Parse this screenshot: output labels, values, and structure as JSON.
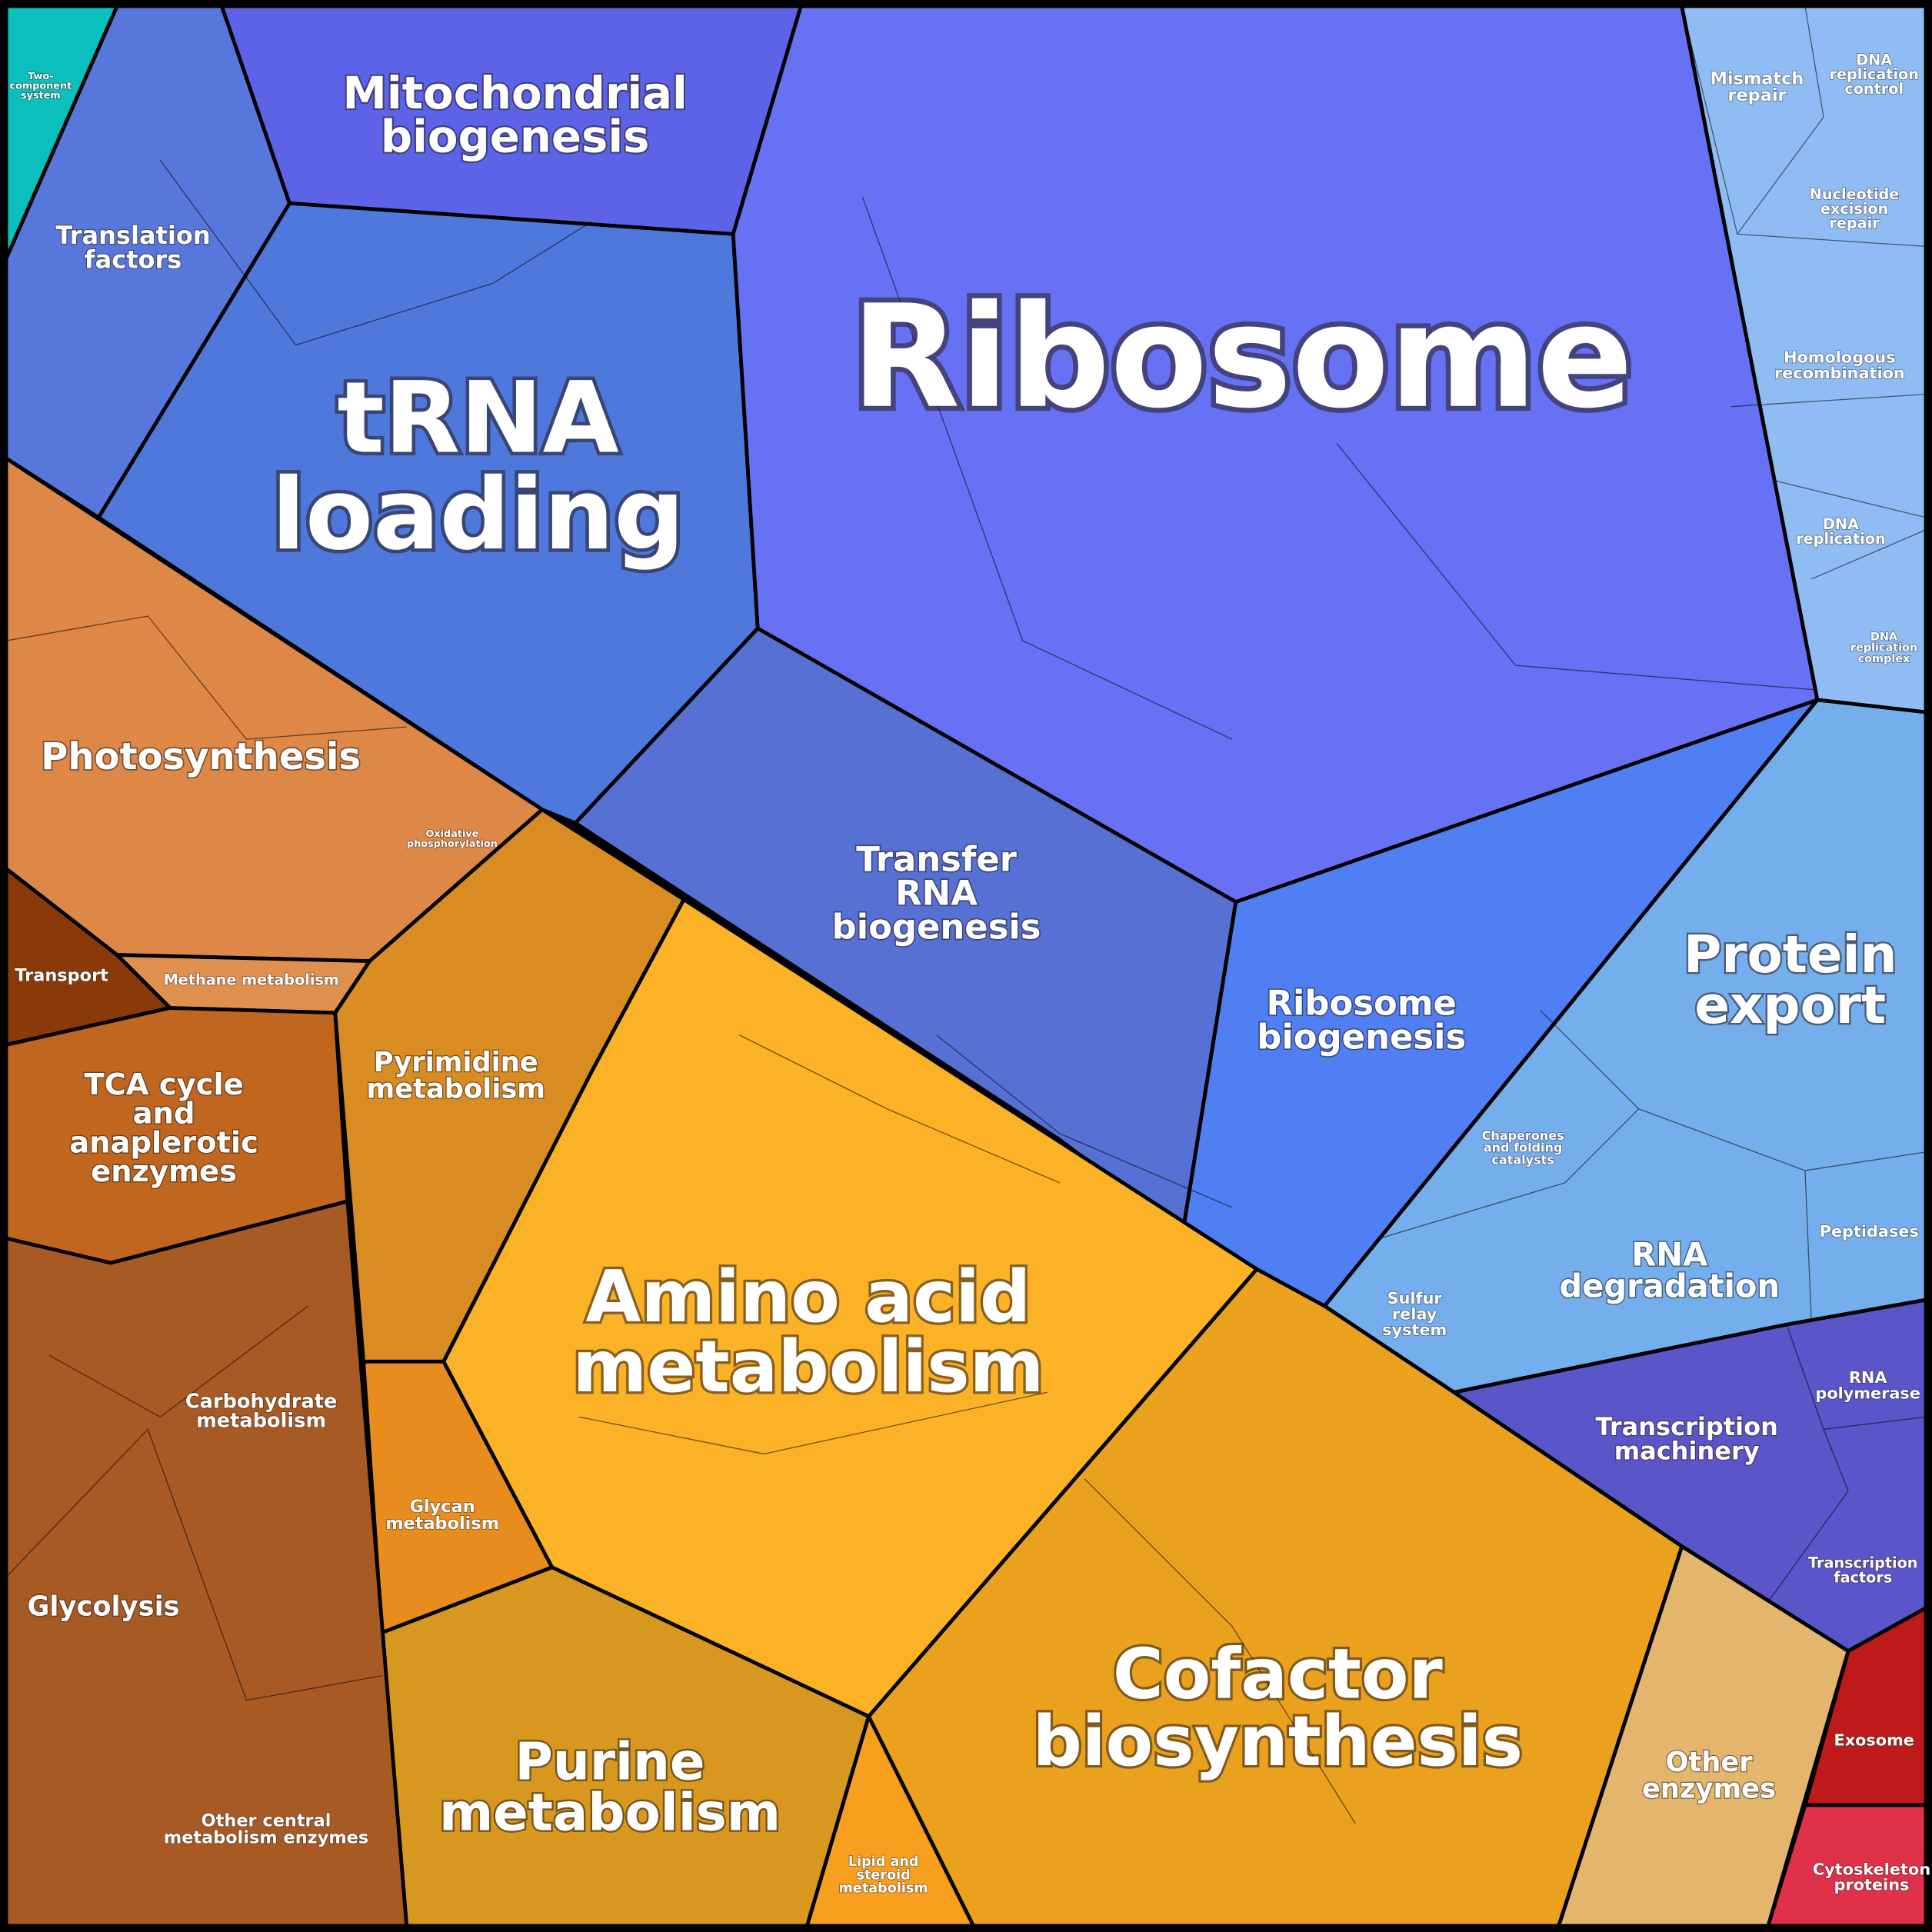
{
  "cells": [
    {
      "label": [
        "Two-",
        "component",
        "system"
      ]
    },
    {
      "label": [
        "Translation",
        "factors"
      ]
    },
    {
      "label": [
        "Mitochondrial",
        "biogenesis"
      ]
    },
    {
      "label": [
        "tRNA",
        "loading"
      ]
    },
    {
      "label": [
        "Ribosome"
      ]
    },
    {
      "label": [
        "Transfer",
        "RNA",
        "biogenesis"
      ]
    },
    {
      "label": [
        "Ribosome",
        "biogenesis"
      ]
    },
    {
      "label": [
        "Protein",
        "export"
      ]
    },
    {
      "label": [
        "Mismatch",
        "repair"
      ]
    },
    {
      "label": [
        "DNA",
        "replication",
        "control"
      ]
    },
    {
      "label": [
        "Nucleotide",
        "excision",
        "repair"
      ]
    },
    {
      "label": [
        "Homologous",
        "recombination"
      ]
    },
    {
      "label": [
        "DNA",
        "replication"
      ]
    },
    {
      "label": [
        "DNA",
        "replication",
        "complex"
      ]
    },
    {
      "label": [
        "Chaperones",
        "and folding",
        "catalysts"
      ]
    },
    {
      "label": [
        "Sulfur",
        "relay",
        "system"
      ]
    },
    {
      "label": [
        "RNA",
        "degradation"
      ]
    },
    {
      "label": [
        "Peptidases"
      ]
    },
    {
      "label": [
        "Transcription",
        "machinery"
      ]
    },
    {
      "label": [
        "RNA",
        "polymerase"
      ]
    },
    {
      "label": [
        "Transcription",
        "factors"
      ]
    },
    {
      "label": [
        "Exosome"
      ]
    },
    {
      "label": [
        "Cytoskeleton",
        "proteins"
      ]
    },
    {
      "label": [
        "Other",
        "enzymes"
      ]
    },
    {
      "label": [
        "Cofactor",
        "biosynthesis"
      ]
    },
    {
      "label": [
        "Lipid and",
        "steroid",
        "metabolism"
      ]
    },
    {
      "label": [
        "Purine",
        "metabolism"
      ]
    },
    {
      "label": [
        "Amino acid",
        "metabolism"
      ]
    },
    {
      "label": [
        "Glycan",
        "metabolism"
      ]
    },
    {
      "label": [
        "Pyrimidine",
        "metabolism"
      ]
    },
    {
      "label": [
        "Photosynthesis"
      ]
    },
    {
      "label": [
        "Oxidative",
        "phosphorylation"
      ]
    },
    {
      "label": [
        "Methane metabolism"
      ]
    },
    {
      "label": [
        "Transport"
      ]
    },
    {
      "label": [
        "TCA cycle",
        "and",
        "anaplerotic",
        "enzymes"
      ]
    },
    {
      "label": [
        "Carbohydrate",
        "metabolism"
      ]
    },
    {
      "label": [
        "Glycolysis"
      ]
    },
    {
      "label": [
        "Other central",
        "metabolism enzymes"
      ]
    }
  ]
}
